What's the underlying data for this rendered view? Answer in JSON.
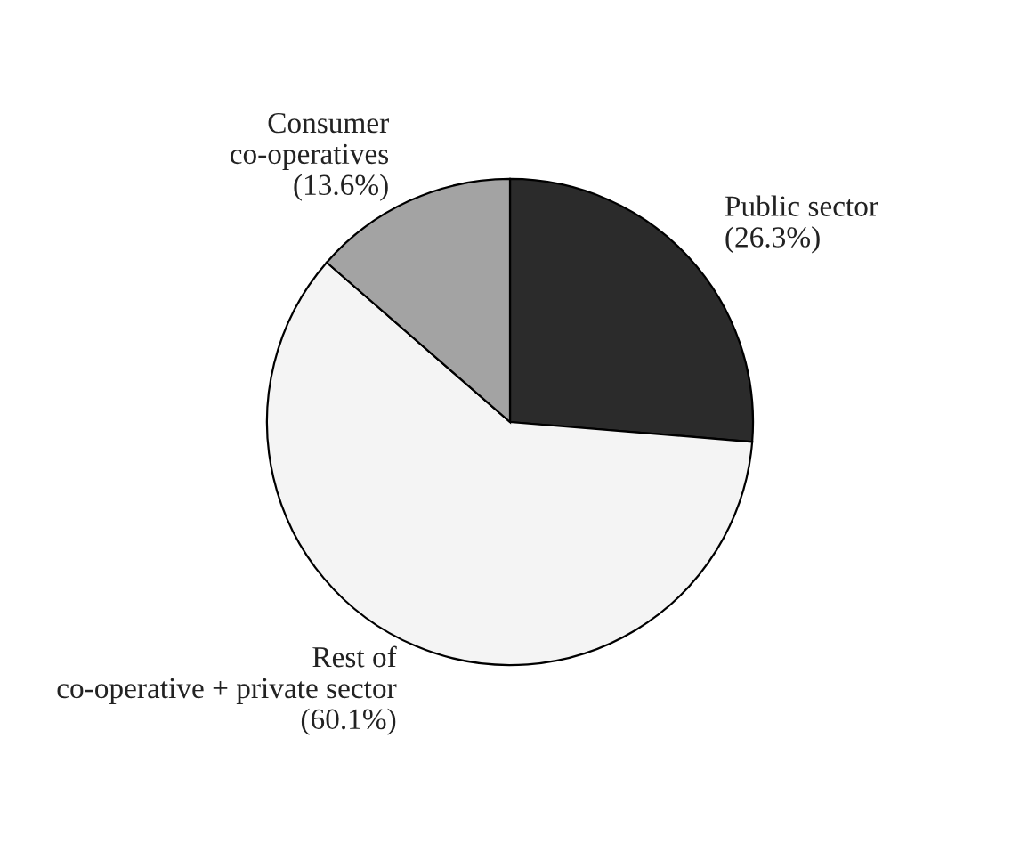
{
  "chart_data": {
    "type": "pie",
    "categories": [
      "Public sector",
      "Rest of\nco-operative + private sector",
      "Consumer\nco-operatives"
    ],
    "values": [
      26.3,
      60.1,
      13.6
    ],
    "value_labels": [
      "(26.3%)",
      "(60.1%)",
      "(13.6%)"
    ],
    "colors": [
      "#2b2b2b",
      "#f4f4f4",
      "#a3a3a3"
    ],
    "legend": false
  }
}
